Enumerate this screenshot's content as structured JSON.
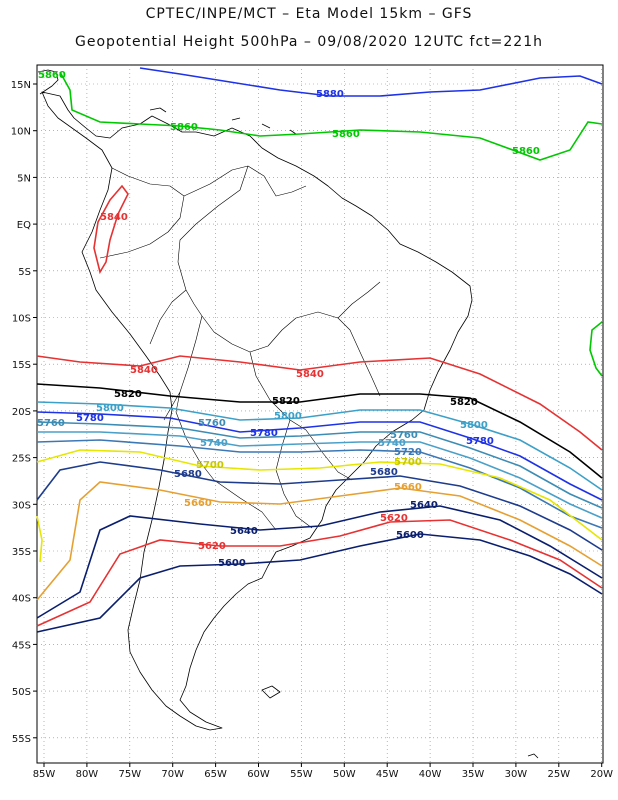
{
  "title_line1": "CPTEC/INPE/MCT –  Eta Model 15km – GFS",
  "title_line2": "Geopotential Height 500hPa – 09/08/2020 12UTC fct=221h",
  "lat_labels": [
    "15N",
    "10N",
    "5N",
    "EQ",
    "5S",
    "10S",
    "15S",
    "20S",
    "25S",
    "30S",
    "35S",
    "40S",
    "45S",
    "50S",
    "55S"
  ],
  "lon_labels": [
    "85W",
    "80W",
    "75W",
    "70W",
    "65W",
    "60W",
    "55W",
    "50W",
    "45W",
    "40W",
    "35W",
    "30W",
    "25W",
    "20W"
  ],
  "contour_colors": {
    "5860": "#00c800",
    "5840": "#e63232",
    "5820": "#000000",
    "5800": "#3ca0c8",
    "5780": "#1e32e6",
    "5760": "#3c8cb4",
    "5740": "#4aa0c8",
    "5720": "#3c78b4",
    "5700": "#e6e600",
    "5680": "#1e3c8c",
    "5660": "#e6a032",
    "5640": "#0a1e6e",
    "5620": "#e63232",
    "5600": "#0a1e6e"
  },
  "contour_labels": [
    {
      "text": "5860",
      "color": "#00c800"
    },
    {
      "text": "5860",
      "color": "#00c800"
    },
    {
      "text": "5860",
      "color": "#00c800"
    },
    {
      "text": "5860",
      "color": "#00c800"
    },
    {
      "text": "5880",
      "color": "#1e32e6"
    },
    {
      "text": "5840",
      "color": "#e63232"
    },
    {
      "text": "5840",
      "color": "#e63232"
    },
    {
      "text": "5840",
      "color": "#e63232"
    },
    {
      "text": "5820",
      "color": "#000000"
    },
    {
      "text": "5820",
      "color": "#000000"
    },
    {
      "text": "5820",
      "color": "#000000"
    },
    {
      "text": "5800",
      "color": "#3ca0c8"
    },
    {
      "text": "5800",
      "color": "#3ca0c8"
    },
    {
      "text": "5800",
      "color": "#3ca0c8"
    },
    {
      "text": "5780",
      "color": "#1e32e6"
    },
    {
      "text": "5780",
      "color": "#1e32e6"
    },
    {
      "text": "5780",
      "color": "#1e32e6"
    },
    {
      "text": "5760",
      "color": "#3c8cb4"
    },
    {
      "text": "5760",
      "color": "#3c8cb4"
    },
    {
      "text": "5760",
      "color": "#3c8cb4"
    },
    {
      "text": "5740",
      "color": "#4aa0c8"
    },
    {
      "text": "5740",
      "color": "#4aa0c8"
    },
    {
      "text": "5720",
      "color": "#3c78b4"
    },
    {
      "text": "5700",
      "color": "#c8c800"
    },
    {
      "text": "5700",
      "color": "#c8c800"
    },
    {
      "text": "5680",
      "color": "#1e3c8c"
    },
    {
      "text": "5680",
      "color": "#1e3c8c"
    },
    {
      "text": "5660",
      "color": "#e6a032"
    },
    {
      "text": "5660",
      "color": "#e6a032"
    },
    {
      "text": "5640",
      "color": "#0a1e6e"
    },
    {
      "text": "5640",
      "color": "#0a1e6e"
    },
    {
      "text": "5620",
      "color": "#e63232"
    },
    {
      "text": "5620",
      "color": "#e63232"
    },
    {
      "text": "5600",
      "color": "#0a1e6e"
    },
    {
      "text": "5600",
      "color": "#0a1e6e"
    }
  ]
}
